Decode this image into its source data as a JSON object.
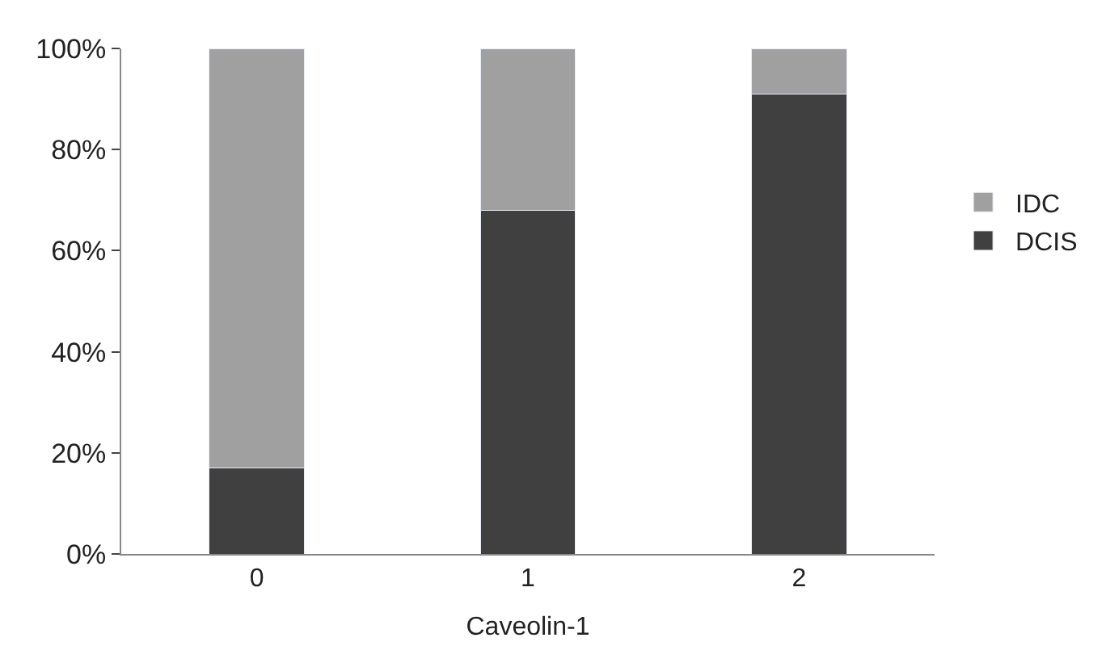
{
  "chart_data": {
    "type": "bar",
    "stacked": true,
    "xlabel": "Caveolin-1",
    "categories": [
      "0",
      "1",
      "2"
    ],
    "series": [
      {
        "name": "DCIS",
        "color": "#404040",
        "values": [
          17,
          68,
          91
        ]
      },
      {
        "name": "IDC",
        "color": "#a0a0a0",
        "values": [
          83,
          32,
          9
        ]
      }
    ],
    "ylim": [
      0,
      100
    ],
    "yticks": [
      {
        "value": 0,
        "label": "0%"
      },
      {
        "value": 20,
        "label": "20%"
      },
      {
        "value": 40,
        "label": "40%"
      },
      {
        "value": 60,
        "label": "60%"
      },
      {
        "value": 80,
        "label": "80%"
      },
      {
        "value": 100,
        "label": "100%"
      }
    ],
    "legend": "right"
  }
}
